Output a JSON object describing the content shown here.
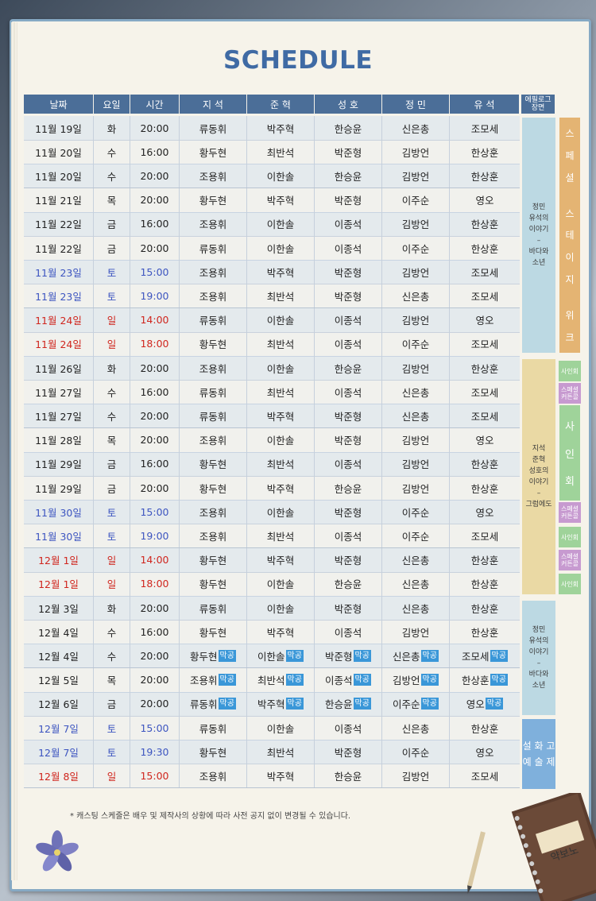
{
  "title": "SCHEDULE",
  "headers": [
    "날짜",
    "요일",
    "시간",
    "지 석",
    "준 혁",
    "성 호",
    "정 민",
    "유 석"
  ],
  "epilogue_header": [
    "에필로그",
    "장면"
  ],
  "badge_text": "막공",
  "rows": [
    {
      "date": "11월 19일",
      "day": "화",
      "time": "20:00",
      "c": [
        "류동휘",
        "박주혁",
        "한승윤",
        "신은총",
        "조모세"
      ],
      "color": ""
    },
    {
      "date": "11월 20일",
      "day": "수",
      "time": "16:00",
      "c": [
        "황두현",
        "최반석",
        "박준형",
        "김방언",
        "한상훈"
      ],
      "color": ""
    },
    {
      "date": "11월 20일",
      "day": "수",
      "time": "20:00",
      "c": [
        "조용휘",
        "이한솔",
        "한승윤",
        "김방언",
        "한상훈"
      ],
      "color": ""
    },
    {
      "date": "11월 21일",
      "day": "목",
      "time": "20:00",
      "c": [
        "황두현",
        "박주혁",
        "박준형",
        "이주순",
        "영오"
      ],
      "color": ""
    },
    {
      "date": "11월 22일",
      "day": "금",
      "time": "16:00",
      "c": [
        "조용휘",
        "이한솔",
        "이종석",
        "김방언",
        "한상훈"
      ],
      "color": ""
    },
    {
      "date": "11월 22일",
      "day": "금",
      "time": "20:00",
      "c": [
        "류동휘",
        "이한솔",
        "이종석",
        "이주순",
        "한상훈"
      ],
      "color": ""
    },
    {
      "date": "11월 23일",
      "day": "토",
      "time": "15:00",
      "c": [
        "조용휘",
        "박주혁",
        "박준형",
        "김방언",
        "조모세"
      ],
      "color": "blue"
    },
    {
      "date": "11월 23일",
      "day": "토",
      "time": "19:00",
      "c": [
        "조용휘",
        "최반석",
        "박준형",
        "신은총",
        "조모세"
      ],
      "color": "blue"
    },
    {
      "date": "11월 24일",
      "day": "일",
      "time": "14:00",
      "c": [
        "류동휘",
        "이한솔",
        "이종석",
        "김방언",
        "영오"
      ],
      "color": "red"
    },
    {
      "date": "11월 24일",
      "day": "일",
      "time": "18:00",
      "c": [
        "황두현",
        "최반석",
        "이종석",
        "이주순",
        "조모세"
      ],
      "color": "red"
    },
    {
      "date": "11월 26일",
      "day": "화",
      "time": "20:00",
      "c": [
        "조용휘",
        "이한솔",
        "한승윤",
        "김방언",
        "한상훈"
      ],
      "color": ""
    },
    {
      "date": "11월 27일",
      "day": "수",
      "time": "16:00",
      "c": [
        "류동휘",
        "최반석",
        "이종석",
        "신은총",
        "조모세"
      ],
      "color": ""
    },
    {
      "date": "11월 27일",
      "day": "수",
      "time": "20:00",
      "c": [
        "류동휘",
        "박주혁",
        "박준형",
        "신은총",
        "조모세"
      ],
      "color": ""
    },
    {
      "date": "11월 28일",
      "day": "목",
      "time": "20:00",
      "c": [
        "조용휘",
        "이한솔",
        "박준형",
        "김방언",
        "영오"
      ],
      "color": ""
    },
    {
      "date": "11월 29일",
      "day": "금",
      "time": "16:00",
      "c": [
        "황두현",
        "최반석",
        "이종석",
        "김방언",
        "한상훈"
      ],
      "color": ""
    },
    {
      "date": "11월 29일",
      "day": "금",
      "time": "20:00",
      "c": [
        "황두현",
        "박주혁",
        "한승윤",
        "김방언",
        "한상훈"
      ],
      "color": ""
    },
    {
      "date": "11월 30일",
      "day": "토",
      "time": "15:00",
      "c": [
        "조용휘",
        "이한솔",
        "박준형",
        "이주순",
        "영오"
      ],
      "color": "blue"
    },
    {
      "date": "11월 30일",
      "day": "토",
      "time": "19:00",
      "c": [
        "조용휘",
        "최반석",
        "이종석",
        "이주순",
        "조모세"
      ],
      "color": "blue"
    },
    {
      "date": "12월 1일",
      "day": "일",
      "time": "14:00",
      "c": [
        "황두현",
        "박주혁",
        "박준형",
        "신은총",
        "한상훈"
      ],
      "color": "red"
    },
    {
      "date": "12월 1일",
      "day": "일",
      "time": "18:00",
      "c": [
        "황두현",
        "이한솔",
        "한승윤",
        "신은총",
        "한상훈"
      ],
      "color": "red"
    },
    {
      "date": "12월 3일",
      "day": "화",
      "time": "20:00",
      "c": [
        "류동휘",
        "이한솔",
        "박준형",
        "신은총",
        "한상훈"
      ],
      "color": ""
    },
    {
      "date": "12월 4일",
      "day": "수",
      "time": "16:00",
      "c": [
        "황두현",
        "박주혁",
        "이종석",
        "김방언",
        "한상훈"
      ],
      "color": ""
    },
    {
      "date": "12월 4일",
      "day": "수",
      "time": "20:00",
      "c": [
        "황두현",
        "이한솔",
        "박준형",
        "신은총",
        "조모세"
      ],
      "color": "",
      "badge": true
    },
    {
      "date": "12월 5일",
      "day": "목",
      "time": "20:00",
      "c": [
        "조용휘",
        "최반석",
        "이종석",
        "김방언",
        "한상훈"
      ],
      "color": "",
      "badge": true
    },
    {
      "date": "12월 6일",
      "day": "금",
      "time": "20:00",
      "c": [
        "류동휘",
        "박주혁",
        "한승윤",
        "이주순",
        "영오"
      ],
      "color": "",
      "badge": true
    },
    {
      "date": "12월 7일",
      "day": "토",
      "time": "15:00",
      "c": [
        "류동휘",
        "이한솔",
        "이종석",
        "신은총",
        "한상훈"
      ],
      "color": "blue"
    },
    {
      "date": "12월 7일",
      "day": "토",
      "time": "19:30",
      "c": [
        "황두현",
        "최반석",
        "박준형",
        "이주순",
        "영오"
      ],
      "color": "blue"
    },
    {
      "date": "12월 8일",
      "day": "일",
      "time": "15:00",
      "c": [
        "조용휘",
        "박주혁",
        "한승윤",
        "김방언",
        "조모세"
      ],
      "color": "red"
    }
  ],
  "epilogue": [
    {
      "lines": [
        "정민",
        "유석의",
        "이야기",
        "–",
        "바다와",
        "소년"
      ]
    },
    {
      "lines": [
        "지석",
        "준혁",
        "성호의",
        "이야기",
        "–",
        "그럼에도"
      ]
    },
    {
      "lines": [
        "정민",
        "유석의",
        "이야기",
        "–",
        "바다와",
        "소년"
      ]
    },
    {
      "lines": [
        "설 화 고",
        "예 술 제"
      ]
    }
  ],
  "special_stage_week": [
    "스",
    "페",
    "셜",
    "",
    "스",
    "테",
    "이",
    "지",
    "",
    "위",
    "크"
  ],
  "signing_event": [
    "사",
    "인",
    "회"
  ],
  "tags": {
    "signing": "사인회",
    "special_curtain_call_1": "스페셜",
    "special_curtain_call_2": "커튼콜"
  },
  "notice": "* 캐스팅 스케줄은 배우 및 제작사의 상황에 따라 사전 공지 없이 변경될 수 있습니다.",
  "notebook_text": "약보노"
}
